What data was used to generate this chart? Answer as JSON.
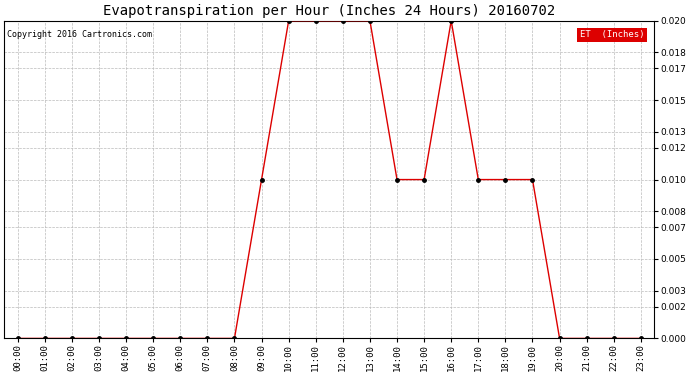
{
  "title": "Evapotranspiration per Hour (Inches 24 Hours) 20160702",
  "copyright": "Copyright 2016 Cartronics.com",
  "legend_label": "ET  (Inches)",
  "legend_bg": "#dd0000",
  "legend_text_color": "#ffffff",
  "line_color": "#dd0000",
  "marker_color": "#000000",
  "background_color": "#ffffff",
  "grid_color": "#bbbbbb",
  "ylim": [
    0.0,
    0.02
  ],
  "yticks": [
    0.0,
    0.002,
    0.003,
    0.005,
    0.007,
    0.008,
    0.01,
    0.012,
    0.013,
    0.015,
    0.017,
    0.018,
    0.02
  ],
  "hours": [
    "00:00",
    "01:00",
    "02:00",
    "03:00",
    "04:00",
    "05:00",
    "06:00",
    "07:00",
    "08:00",
    "09:00",
    "10:00",
    "11:00",
    "12:00",
    "13:00",
    "14:00",
    "15:00",
    "16:00",
    "17:00",
    "18:00",
    "19:00",
    "20:00",
    "21:00",
    "22:00",
    "23:00"
  ],
  "x_indices": [
    0,
    1,
    2,
    3,
    4,
    5,
    6,
    7,
    8,
    9,
    10,
    11,
    12,
    13,
    14,
    15,
    16,
    17,
    18,
    19,
    20,
    21,
    22,
    23
  ],
  "et_values": [
    0.0,
    0.0,
    0.0,
    0.0,
    0.0,
    0.0,
    0.0,
    0.0,
    0.0,
    0.01,
    0.02,
    0.02,
    0.02,
    0.02,
    0.01,
    0.01,
    0.02,
    0.01,
    0.01,
    0.01,
    0.0,
    0.0,
    0.0,
    0.0
  ]
}
